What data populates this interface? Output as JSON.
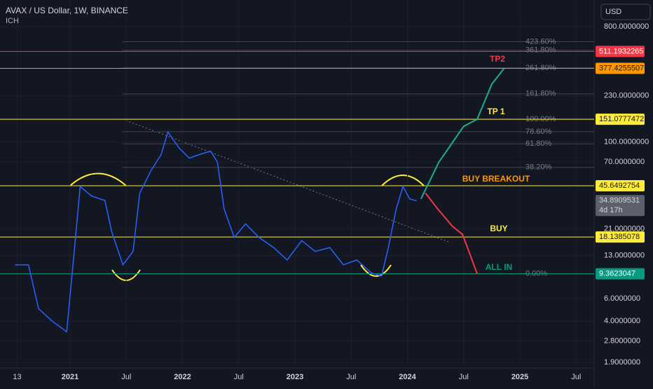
{
  "header": {
    "title": "AVAX / US Dollar, 1W, BINANCE",
    "indicator": "ICH",
    "currency": "USD"
  },
  "chart_data": {
    "type": "line",
    "log_scale": true,
    "grid": true,
    "xlim": [
      2020.377,
      2025.66
    ],
    "ylim": [
      1.72,
      1290
    ],
    "xticks": [
      {
        "value": 2020.53,
        "label": "13"
      },
      2021,
      {
        "value": 2021.5,
        "label": "Jul"
      },
      2022,
      {
        "value": 2022.5,
        "label": "Jul"
      },
      2023,
      {
        "value": 2023.5,
        "label": "Jul"
      },
      2024,
      {
        "value": 2024.5,
        "label": "Jul"
      },
      2025,
      {
        "value": 2025.5,
        "label": "Jul"
      }
    ],
    "yticks": [
      {
        "value": 800,
        "label": "800.0000000"
      },
      {
        "value": 230,
        "label": "230.0000000"
      },
      {
        "value": 100,
        "label": "100.0000000"
      },
      {
        "value": 70,
        "label": "70.0000000"
      },
      {
        "value": 21,
        "label": "21.0000000"
      },
      {
        "value": 13,
        "label": "13.0000000"
      },
      {
        "value": 6,
        "label": "6.0000000"
      },
      {
        "value": 4,
        "label": "4.0000000"
      },
      {
        "value": 2.8,
        "label": "2.8000000"
      },
      {
        "value": 1.9,
        "label": "1.9000000"
      }
    ],
    "series": [
      {
        "color": "#2962ff",
        "x": [
          2020.51,
          2020.63,
          2020.72,
          2020.84,
          2020.97,
          2021.03,
          2021.09,
          2021.19,
          2021.31,
          2021.37,
          2021.47,
          2021.56,
          2021.62,
          2021.72,
          2021.81,
          2021.87,
          2021.97,
          2022.06,
          2022.15,
          2022.25,
          2022.31,
          2022.37,
          2022.46,
          2022.56,
          2022.68,
          2022.81,
          2022.93,
          2023.06,
          2023.18,
          2023.31,
          2023.43,
          2023.55,
          2023.68,
          2023.77,
          2023.83,
          2023.9,
          2023.96,
          2024.02,
          2024.08
        ],
        "values": [
          11,
          11,
          5,
          4,
          3.3,
          12,
          45,
          38,
          35,
          20,
          11,
          14,
          40,
          60,
          80,
          120,
          90,
          75,
          80,
          85,
          70,
          30,
          18,
          23,
          18,
          15,
          12,
          17,
          14,
          15,
          11,
          12,
          9.5,
          9,
          15,
          30,
          45,
          36,
          34.8909531
        ]
      },
      {
        "color": "#22ab94",
        "x": [
          2024.12,
          2024.28,
          2024.5,
          2024.62,
          2024.75,
          2024.86
        ],
        "values": [
          36,
          70,
          133,
          151,
          284,
          377
        ]
      },
      {
        "color": "#f23645",
        "x": [
          2024.16,
          2024.27,
          2024.4,
          2024.49,
          2024.62
        ],
        "values": [
          40,
          30,
          22,
          19,
          9.3623047
        ]
      }
    ],
    "levels": [
      {
        "value": 511.1932265,
        "color": "#f23645"
      },
      {
        "value": 377.4255507,
        "color": "#ff9800"
      },
      {
        "value": 151.0777472,
        "color": "#ffeb3b"
      },
      {
        "value": 45.6492754,
        "color": "#ffeb3b"
      },
      {
        "value": 18.1385078,
        "color": "#ffeb3b"
      },
      {
        "value": 9.3623047,
        "color": "#089981"
      }
    ],
    "last_price": 34.8909531,
    "countdown": "4d 17h",
    "fib": [
      {
        "label": "423.60%",
        "value": 609.6
      },
      {
        "label": "361.80%",
        "value": 522.0
      },
      {
        "label": "261.80%",
        "value": 380.4
      },
      {
        "label": "161.80%",
        "value": 238.6
      },
      {
        "label": "100.00%",
        "value": 151.1
      },
      {
        "label": "78.60%",
        "value": 120.7
      },
      {
        "label": "61.80%",
        "value": 96.9
      },
      {
        "label": "38.20%",
        "value": 63.5
      },
      {
        "label": "0.00%",
        "value": 9.36
      }
    ],
    "annotations": [
      {
        "text": "TP2",
        "color": "#f23645"
      },
      {
        "text": "TP 1",
        "color": "#ffeb3b"
      },
      {
        "text": "BUY BREAKOUT",
        "color": "#ff9800"
      },
      {
        "text": "BUY",
        "color": "#ffeb3b"
      },
      {
        "text": "ALL IN",
        "color": "#089981"
      }
    ]
  }
}
